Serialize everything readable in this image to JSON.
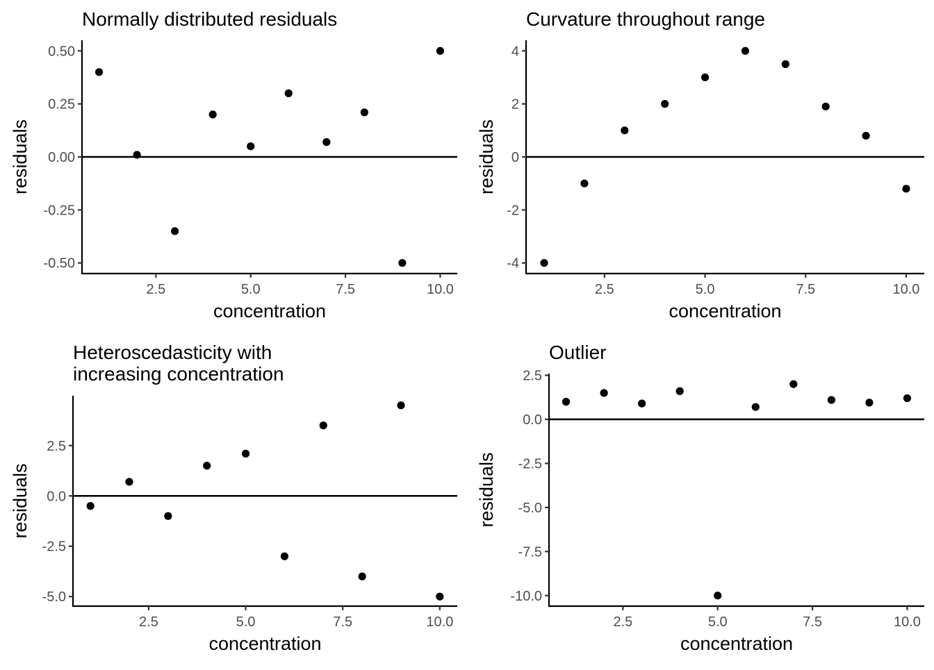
{
  "chart_data": [
    {
      "type": "scatter",
      "title": [
        "Normally distributed residuals"
      ],
      "xlabel": "concentration",
      "ylabel": "residuals",
      "xlim": [
        0.55,
        10.45
      ],
      "ylim": [
        -0.55,
        0.55
      ],
      "xticks": [
        2.5,
        5.0,
        7.5,
        10.0
      ],
      "xtick_labels": [
        "2.5",
        "5.0",
        "7.5",
        "10.0"
      ],
      "yticks": [
        0.5,
        0.25,
        0.0,
        -0.25,
        -0.5
      ],
      "ytick_labels": [
        "0.50",
        "0.25",
        "0.00",
        "-0.25",
        "-0.50"
      ],
      "hline": 0,
      "x": [
        1,
        2,
        3,
        4,
        5,
        6,
        7,
        8,
        9,
        10
      ],
      "y": [
        0.4,
        0.01,
        -0.35,
        0.2,
        0.05,
        0.3,
        0.07,
        0.21,
        -0.5,
        0.5
      ]
    },
    {
      "type": "scatter",
      "title": [
        "Curvature throughout range"
      ],
      "xlabel": "concentration",
      "ylabel": "residuals",
      "xlim": [
        0.55,
        10.45
      ],
      "ylim": [
        -4.4,
        4.4
      ],
      "xticks": [
        2.5,
        5.0,
        7.5,
        10.0
      ],
      "xtick_labels": [
        "2.5",
        "5.0",
        "7.5",
        "10.0"
      ],
      "yticks": [
        4,
        2,
        0,
        -2,
        -4
      ],
      "ytick_labels": [
        "4",
        "2",
        "0",
        "-2",
        "-4"
      ],
      "hline": 0,
      "x": [
        1,
        2,
        3,
        4,
        5,
        6,
        7,
        8,
        9,
        10
      ],
      "y": [
        -4.0,
        -1.0,
        1.0,
        2.0,
        3.0,
        4.0,
        3.5,
        1.9,
        0.8,
        -1.2
      ]
    },
    {
      "type": "scatter",
      "title": [
        "Heteroscedasticity with",
        "increasing concentration"
      ],
      "xlabel": "concentration",
      "ylabel": "residuals",
      "xlim": [
        0.55,
        10.45
      ],
      "ylim": [
        -5.475,
        4.975
      ],
      "xticks": [
        2.5,
        5.0,
        7.5,
        10.0
      ],
      "xtick_labels": [
        "2.5",
        "5.0",
        "7.5",
        "10.0"
      ],
      "yticks": [
        2.5,
        0.0,
        -2.5,
        -5.0
      ],
      "ytick_labels": [
        "2.5",
        "0.0",
        "-2.5",
        "-5.0"
      ],
      "hline": 0,
      "x": [
        1,
        2,
        3,
        4,
        5,
        6,
        7,
        8,
        9,
        10
      ],
      "y": [
        -0.5,
        0.7,
        -1.0,
        1.5,
        2.1,
        -3.0,
        3.5,
        -4.0,
        4.5,
        -5.0
      ]
    },
    {
      "type": "scatter",
      "title": [
        "Outlier"
      ],
      "xlabel": "concentration",
      "ylabel": "residuals",
      "xlim": [
        0.55,
        10.45
      ],
      "ylim": [
        -10.6,
        2.6
      ],
      "xticks": [
        2.5,
        5.0,
        7.5,
        10.0
      ],
      "xtick_labels": [
        "2.5",
        "5.0",
        "7.5",
        "10.0"
      ],
      "yticks": [
        2.5,
        0.0,
        -2.5,
        -5.0,
        -7.5,
        -10.0
      ],
      "ytick_labels": [
        "2.5",
        "0.0",
        "-2.5",
        "-5.0",
        "-7.5",
        "-10.0"
      ],
      "hline": 0,
      "x": [
        1,
        2,
        3,
        4,
        5,
        6,
        7,
        8,
        9,
        10
      ],
      "y": [
        1.0,
        1.5,
        0.9,
        1.6,
        -10.0,
        0.7,
        2.0,
        1.1,
        0.95,
        1.2
      ]
    }
  ]
}
